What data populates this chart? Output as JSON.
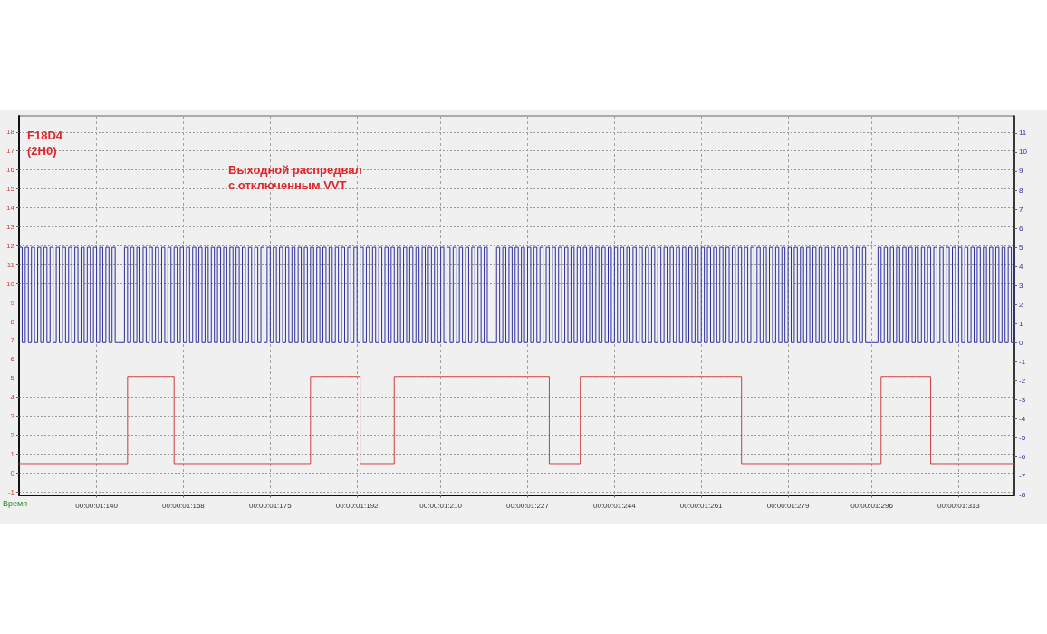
{
  "chart_data": {
    "type": "step",
    "title": "F18D4\n(2H0)",
    "subtitle": "Выходной распредвал\nс отключенным VVT",
    "xlabel": "Время",
    "categories": [
      null,
      null,
      null,
      null,
      null,
      null,
      null,
      null,
      null,
      null,
      null,
      null,
      null,
      null,
      null,
      null,
      null,
      null,
      null,
      null,
      null,
      null,
      null,
      null,
      null,
      "00:00:01:140",
      null,
      null,
      null,
      null,
      null,
      null,
      null,
      null,
      null,
      null,
      null,
      null,
      null,
      null,
      null,
      null,
      null,
      null,
      null,
      null,
      null,
      null,
      null,
      null,
      null,
      null,
      null,
      "00:00:01:158",
      null,
      null,
      null,
      null,
      null,
      null,
      null,
      null,
      null,
      null,
      null,
      null,
      null,
      null,
      null,
      null,
      null,
      null,
      null,
      null,
      null,
      null,
      null,
      null,
      null,
      null,
      null,
      "00:00:01:175",
      null,
      null,
      null,
      null,
      null,
      null,
      null,
      null,
      null,
      null,
      null,
      null,
      null,
      null,
      null,
      null,
      null,
      null,
      null,
      null,
      null,
      null,
      null,
      null,
      null,
      null,
      null,
      "00:00:01:192",
      null,
      null,
      null,
      null,
      null,
      null,
      null,
      null,
      null,
      null,
      null,
      null,
      null,
      null,
      null,
      null,
      null,
      null,
      null,
      null,
      null,
      null,
      null,
      null,
      null,
      null,
      "00:00:01:210",
      null,
      null,
      null,
      null,
      null,
      null,
      null,
      null,
      null,
      null,
      null,
      null,
      null,
      null,
      null,
      null,
      null,
      null,
      null,
      null,
      null,
      null,
      null,
      null,
      null,
      null,
      null,
      "00:00:01:227",
      null,
      null,
      null,
      null,
      null,
      null,
      null,
      null,
      null,
      null,
      null,
      null,
      null,
      null,
      null,
      null,
      null,
      null,
      null,
      null,
      null,
      null,
      null,
      null,
      null,
      null,
      null,
      "00:00:01:244",
      null,
      null,
      null,
      null,
      null,
      null,
      null,
      null,
      null,
      null,
      null,
      null,
      null,
      null,
      null,
      null,
      null,
      null,
      null,
      null,
      null,
      null,
      null,
      null,
      null,
      null,
      null,
      "00:00:01:261",
      null,
      null,
      null,
      null,
      null,
      null,
      null,
      null,
      null,
      null,
      null,
      null,
      null,
      null,
      null,
      null,
      null,
      null,
      null,
      null,
      null,
      null,
      null,
      null,
      null,
      null,
      null,
      "00:00:01:279",
      null,
      null,
      null,
      null,
      null,
      null,
      null,
      null,
      null,
      null,
      null,
      null,
      null,
      null,
      null,
      null,
      null,
      null,
      null,
      null,
      null,
      null,
      null,
      null,
      null,
      null,
      "00:00:01:296",
      null,
      null,
      null,
      null,
      null,
      null,
      null,
      null,
      null,
      null,
      null,
      null,
      null,
      null,
      null,
      null,
      null,
      null,
      null,
      null,
      null,
      null,
      null,
      null,
      null,
      null,
      null,
      "00:00:01:313",
      null,
      null,
      null,
      null,
      null,
      null,
      null,
      null,
      null,
      null,
      null,
      null,
      null,
      null,
      null,
      null,
      null,
      null
    ],
    "ylim": [
      -1.15,
      18.85
    ],
    "yticks": [
      -1,
      0,
      1,
      2,
      3,
      4,
      5,
      6,
      7,
      8,
      9,
      10,
      11,
      12,
      13,
      14,
      15,
      16,
      17,
      18
    ],
    "y2lim": [
      -8,
      11.9
    ],
    "y2ticks": [
      -8,
      -7,
      -6,
      -5,
      -4,
      -3,
      -2,
      -1,
      0,
      1,
      2,
      3,
      4,
      5,
      6,
      7,
      8,
      9,
      10,
      11
    ],
    "grid": true,
    "series": [
      {
        "color": "#d23c3c",
        "values": [
          0.5,
          0.5,
          0.5,
          0.5,
          0.5,
          0.5,
          0.5,
          0.5,
          0.5,
          0.5,
          0.5,
          0.5,
          0.5,
          0.5,
          0.5,
          0.5,
          0.5,
          0.5,
          0.5,
          0.5,
          0.5,
          0.5,
          0.5,
          0.5,
          0.5,
          0.5,
          0.5,
          0.5,
          0.5,
          0.5,
          0.5,
          0.5,
          0.5,
          0.5,
          0.5,
          5.1,
          5.1,
          5.1,
          5.1,
          5.1,
          5.1,
          5.1,
          5.1,
          5.1,
          5.1,
          5.1,
          5.1,
          5.1,
          5.1,
          5.1,
          0.5,
          0.5,
          0.5,
          0.5,
          0.5,
          0.5,
          0.5,
          0.5,
          0.5,
          0.5,
          0.5,
          0.5,
          0.5,
          0.5,
          0.5,
          0.5,
          0.5,
          0.5,
          0.5,
          0.5,
          0.5,
          0.5,
          0.5,
          0.5,
          0.5,
          0.5,
          0.5,
          0.5,
          0.5,
          0.5,
          0.5,
          0.5,
          0.5,
          0.5,
          0.5,
          0.5,
          0.5,
          0.5,
          0.5,
          0.5,
          0.5,
          0.5,
          0.5,
          0.5,
          5.1,
          5.1,
          5.1,
          5.1,
          5.1,
          5.1,
          5.1,
          5.1,
          5.1,
          5.1,
          5.1,
          5.1,
          5.1,
          5.1,
          5.1,
          5.1,
          0.5,
          0.5,
          0.5,
          0.5,
          0.5,
          0.5,
          0.5,
          0.5,
          0.5,
          0.5,
          0.5,
          5.1,
          5.1,
          5.1,
          5.1,
          5.1,
          5.1,
          5.1,
          5.1,
          5.1,
          5.1,
          5.1,
          5.1,
          5.1,
          5.1,
          5.1,
          5.1,
          5.1,
          5.1,
          5.1,
          5.1,
          5.1,
          5.1,
          5.1,
          5.1,
          5.1,
          5.1,
          5.1,
          5.1,
          5.1,
          5.1,
          5.1,
          5.1,
          5.1,
          5.1,
          5.1,
          5.1,
          5.1,
          5.1,
          5.1,
          5.1,
          5.1,
          5.1,
          5.1,
          5.1,
          5.1,
          5.1,
          5.1,
          5.1,
          5.1,
          5.1,
          0.5,
          0.5,
          0.5,
          0.5,
          0.5,
          0.5,
          0.5,
          0.5,
          0.5,
          0.5,
          5.1,
          5.1,
          5.1,
          5.1,
          5.1,
          5.1,
          5.1,
          5.1,
          5.1,
          5.1,
          5.1,
          5.1,
          5.1,
          5.1,
          5.1,
          5.1,
          5.1,
          5.1,
          5.1,
          5.1,
          5.1,
          5.1,
          5.1,
          5.1,
          5.1,
          5.1,
          5.1,
          5.1,
          5.1,
          5.1,
          5.1,
          5.1,
          5.1,
          5.1,
          5.1,
          5.1,
          5.1,
          5.1,
          5.1,
          5.1,
          5.1,
          5.1,
          5.1,
          5.1,
          5.1,
          5.1,
          5.1,
          5.1,
          5.1,
          5.1,
          5.1,
          5.1,
          0.5,
          0.5,
          0.5,
          0.5,
          0.5,
          0.5,
          0.5,
          0.5,
          0.5,
          0.5,
          0.5,
          0.5,
          0.5,
          0.5,
          0.5,
          0.5,
          0.5,
          0.5,
          0.5,
          0.5,
          0.5,
          0.5,
          0.5,
          0.5,
          0.5,
          0.5,
          0.5,
          0.5,
          0.5,
          0.5,
          0.5,
          0.5,
          0.5,
          0.5,
          0.5,
          0.5,
          0.5,
          0.5,
          0.5,
          0.5,
          0.5,
          0.5,
          0.5,
          0.5,
          0.5,
          5.1,
          5.1,
          5.1,
          5.1,
          5.1,
          5.1,
          5.1,
          5.1,
          5.1,
          5.1,
          5.1,
          5.1,
          5.1,
          5.1,
          5.1,
          5.1,
          0.5,
          0.5,
          0.5,
          0.5,
          0.5,
          0.5,
          0.5,
          0.5,
          0.5,
          0.5,
          0.5,
          0.5,
          0.5,
          0.5,
          0.5,
          0.5,
          0.5,
          0.5,
          0.5,
          0.5,
          0.5,
          0.5,
          0.5,
          0.5,
          0.5,
          0.5,
          0.5,
          0.5
        ]
      },
      {
        "color": "#2e2e9e",
        "axis": "y2",
        "values": [
          5,
          0,
          5,
          0,
          5,
          0,
          5,
          0,
          5,
          0,
          5,
          0,
          5,
          0,
          5,
          0,
          5,
          0,
          5,
          0,
          5,
          0,
          5,
          0,
          5,
          0,
          5,
          0,
          5,
          0,
          5,
          0,
          0,
          0,
          5,
          0,
          5,
          0,
          5,
          0,
          5,
          0,
          5,
          0,
          5,
          0,
          5,
          0,
          5,
          0,
          5,
          0,
          5,
          0,
          5,
          0,
          5,
          0,
          5,
          0,
          5,
          0,
          5,
          0,
          5,
          0,
          5,
          0,
          5,
          0,
          5,
          0,
          5,
          0,
          5,
          0,
          5,
          0,
          5,
          0,
          5,
          0,
          5,
          0,
          5,
          0,
          5,
          0,
          5,
          0,
          5,
          0,
          5,
          0,
          5,
          0,
          5,
          0,
          5,
          0,
          5,
          0,
          5,
          0,
          5,
          0,
          5,
          0,
          5,
          0,
          5,
          0,
          5,
          0,
          5,
          0,
          5,
          0,
          5,
          0,
          5,
          0,
          5,
          0,
          5,
          0,
          5,
          0,
          5,
          0,
          5,
          0,
          5,
          0,
          5,
          0,
          5,
          0,
          5,
          0,
          5,
          0,
          5,
          0,
          5,
          0,
          5,
          0,
          5,
          0,
          5,
          0,
          0,
          0,
          5,
          0,
          5,
          0,
          5,
          0,
          5,
          0,
          5,
          0,
          5,
          0,
          5,
          0,
          5,
          0,
          5,
          0,
          5,
          0,
          5,
          0,
          5,
          0,
          5,
          0,
          5,
          0,
          5,
          0,
          5,
          0,
          5,
          0,
          5,
          0,
          5,
          0,
          5,
          0,
          5,
          0,
          5,
          0,
          5,
          0,
          5,
          0,
          5,
          0,
          5,
          0,
          5,
          0,
          5,
          0,
          5,
          0,
          5,
          0,
          5,
          0,
          5,
          0,
          5,
          0,
          5,
          0,
          5,
          0,
          5,
          0,
          5,
          0,
          5,
          0,
          5,
          0,
          5,
          0,
          5,
          0,
          5,
          0,
          5,
          0,
          5,
          0,
          5,
          0,
          5,
          0,
          5,
          0,
          5,
          0,
          5,
          0,
          5,
          0,
          5,
          0,
          5,
          0,
          5,
          0,
          5,
          0,
          5,
          0,
          5,
          0,
          5,
          0,
          5,
          0,
          5,
          0,
          5,
          0,
          0,
          0,
          0,
          5,
          0,
          5,
          0,
          5,
          0,
          5,
          0,
          5,
          0,
          5,
          0,
          5,
          0,
          5,
          0,
          5,
          0,
          5,
          0,
          5,
          0,
          5,
          0,
          5,
          0,
          5,
          0,
          5,
          0,
          5,
          0,
          5,
          0,
          5,
          0,
          5,
          0,
          5,
          0,
          5,
          0,
          5,
          0,
          5
        ]
      }
    ]
  }
}
